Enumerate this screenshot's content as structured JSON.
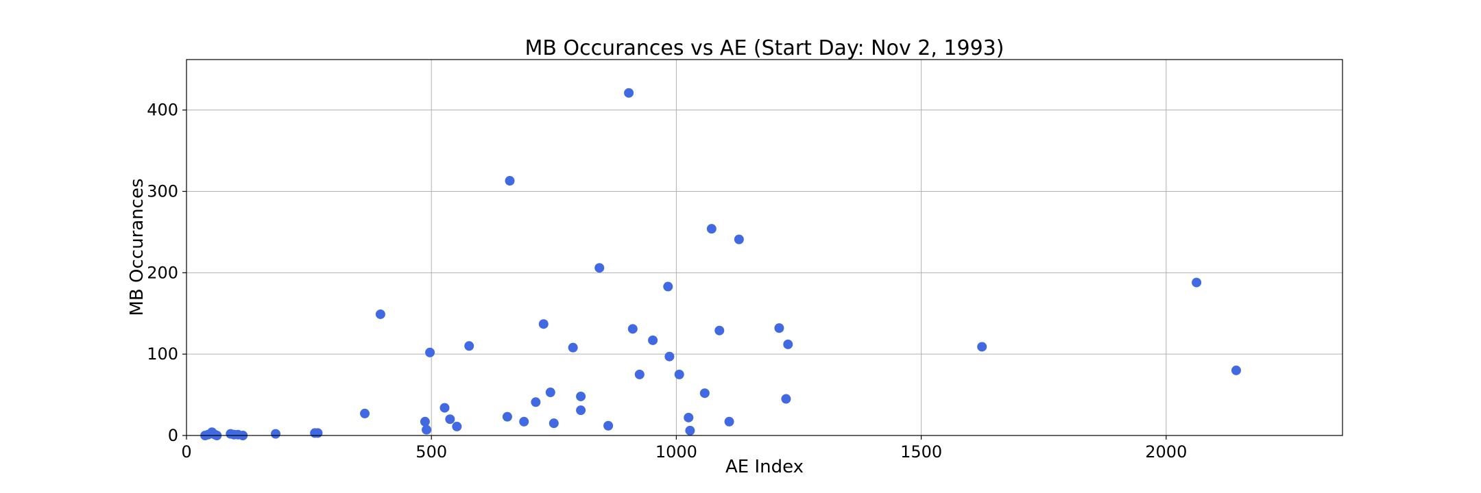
{
  "chart_data": {
    "type": "scatter",
    "title": "MB Occurances vs AE (Start Day: Nov 2, 1993)",
    "xlabel": "AE Index",
    "ylabel": "MB Occurances",
    "xlim": [
      0,
      2360
    ],
    "ylim": [
      0,
      462
    ],
    "xticks": [
      0,
      500,
      1000,
      1500,
      2000
    ],
    "yticks": [
      0,
      100,
      200,
      300,
      400
    ],
    "grid": true,
    "marker_color": "#4169e1",
    "points": [
      {
        "x": 38,
        "y": 0
      },
      {
        "x": 44,
        "y": 1
      },
      {
        "x": 52,
        "y": 4
      },
      {
        "x": 58,
        "y": 1
      },
      {
        "x": 62,
        "y": 0
      },
      {
        "x": 90,
        "y": 2
      },
      {
        "x": 97,
        "y": 1
      },
      {
        "x": 105,
        "y": 1
      },
      {
        "x": 115,
        "y": 0
      },
      {
        "x": 182,
        "y": 2
      },
      {
        "x": 262,
        "y": 3
      },
      {
        "x": 268,
        "y": 3
      },
      {
        "x": 364,
        "y": 27
      },
      {
        "x": 396,
        "y": 149
      },
      {
        "x": 487,
        "y": 17
      },
      {
        "x": 490,
        "y": 7
      },
      {
        "x": 497,
        "y": 102
      },
      {
        "x": 527,
        "y": 34
      },
      {
        "x": 538,
        "y": 20
      },
      {
        "x": 552,
        "y": 11
      },
      {
        "x": 577,
        "y": 110
      },
      {
        "x": 655,
        "y": 23
      },
      {
        "x": 660,
        "y": 313
      },
      {
        "x": 689,
        "y": 17
      },
      {
        "x": 713,
        "y": 41
      },
      {
        "x": 729,
        "y": 137
      },
      {
        "x": 743,
        "y": 53
      },
      {
        "x": 750,
        "y": 15
      },
      {
        "x": 789,
        "y": 108
      },
      {
        "x": 805,
        "y": 48
      },
      {
        "x": 805,
        "y": 31
      },
      {
        "x": 843,
        "y": 206
      },
      {
        "x": 861,
        "y": 12
      },
      {
        "x": 903,
        "y": 421
      },
      {
        "x": 911,
        "y": 131
      },
      {
        "x": 925,
        "y": 75
      },
      {
        "x": 952,
        "y": 117
      },
      {
        "x": 983,
        "y": 183
      },
      {
        "x": 986,
        "y": 97
      },
      {
        "x": 1006,
        "y": 75
      },
      {
        "x": 1025,
        "y": 22
      },
      {
        "x": 1028,
        "y": 6
      },
      {
        "x": 1058,
        "y": 52
      },
      {
        "x": 1072,
        "y": 254
      },
      {
        "x": 1088,
        "y": 129
      },
      {
        "x": 1108,
        "y": 17
      },
      {
        "x": 1128,
        "y": 241
      },
      {
        "x": 1210,
        "y": 132
      },
      {
        "x": 1224,
        "y": 45
      },
      {
        "x": 1228,
        "y": 112
      },
      {
        "x": 1624,
        "y": 109
      },
      {
        "x": 2062,
        "y": 188
      },
      {
        "x": 2143,
        "y": 80
      }
    ]
  }
}
